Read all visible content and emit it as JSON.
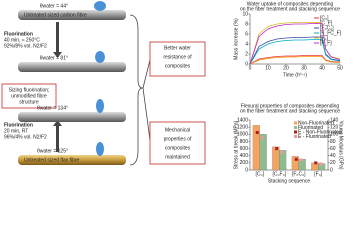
{
  "fibres": [
    {
      "label": "Untreated sized carbon fibre",
      "angle": "θwater = 44°"
    },
    {
      "angle": "θwater = 81°"
    },
    {
      "angle": "θwater = 134°"
    },
    {
      "label": "Untreated sized flax fibre",
      "angle": "θwater = 125°"
    }
  ],
  "treatments": [
    {
      "title": "Fluorination",
      "lines": [
        "40 min, ≈ 250°C",
        "92%/8% vol. N2/F2"
      ]
    },
    {
      "title": "Fluorination",
      "lines": [
        "20 min, RT",
        "96%/4% vol. N2/F2"
      ]
    }
  ],
  "center_box": [
    "Sizing fluorination;",
    "unmodified fibre",
    "structure"
  ],
  "outcomes": [
    [
      "Better water",
      "resistance of",
      "composites"
    ],
    [
      "Mechanical",
      "properties of",
      "composites",
      "maintained"
    ]
  ],
  "chart_data": [
    {
      "type": "line",
      "title": [
        "Water uptake of composites depending",
        "on the fiber treatment and stacking sequence"
      ],
      "x_label": "Time (h⁰·⁵)",
      "y_label": "Mass increase (%)",
      "x": [
        0,
        5,
        10,
        15,
        20,
        25,
        30,
        35,
        40,
        42,
        45,
        50
      ],
      "series": [
        {
          "name": "[C₀]",
          "color": "#e53935",
          "values": [
            0,
            1,
            1.3,
            1.5,
            1.6,
            1.6,
            1.7,
            1.7,
            1.7,
            0.8,
            0.5,
            0.4
          ]
        },
        {
          "name": "[C_F]",
          "color": "#fb8c00",
          "values": [
            0,
            0.8,
            1.1,
            1.3,
            1.4,
            1.4,
            1.5,
            1.5,
            1.5,
            0.7,
            0.4,
            0.3
          ]
        },
        {
          "name": "[F₀C₀]",
          "color": "#3949ab",
          "values": [
            0,
            3.5,
            4.5,
            5,
            5.2,
            5.3,
            5.3,
            5.4,
            5.4,
            2,
            1,
            0.7
          ]
        },
        {
          "name": "[F_FC_F]",
          "color": "#00acc1",
          "values": [
            0,
            3,
            4,
            4.5,
            4.7,
            4.8,
            4.8,
            4.9,
            4.9,
            1.8,
            0.9,
            0.6
          ]
        },
        {
          "name": "[F₀]",
          "color": "#d4c21a",
          "values": [
            0,
            6,
            7.5,
            8,
            8.2,
            8.3,
            8.3,
            8.3,
            8.3,
            3,
            1.5,
            1
          ]
        },
        {
          "name": "[F_F]",
          "color": "#c026d3",
          "values": [
            0,
            5.5,
            7,
            7.6,
            7.9,
            8,
            8,
            8.1,
            8.1,
            3,
            1.4,
            0.9
          ]
        }
      ],
      "xlim": [
        0,
        50
      ],
      "xticks": [
        0,
        10,
        20,
        30,
        40,
        50
      ],
      "ylim": [
        0,
        10
      ],
      "yticks": [
        0,
        2,
        4,
        6,
        8,
        10
      ]
    },
    {
      "type": "bar",
      "title": [
        "Flexural properties of composites depending",
        "on the fiber treatment and stacking sequence"
      ],
      "x_label": "Stacking sequence",
      "y_label": "Stress at break (MPa)",
      "y2_label": "Young Modulus (GPa)",
      "categories": [
        "[C₀]",
        "[C₀F₀]",
        "[F₀C₀]",
        "[F₀]"
      ],
      "series": [
        {
          "name": "Non-Fluorinated",
          "color": "#f4a460",
          "values": [
            1250,
            650,
            380,
            200
          ]
        },
        {
          "name": "Fluorinated",
          "color": "#8fbc8f",
          "values": [
            1000,
            550,
            300,
            180
          ]
        },
        {
          "name": "E - Non-Fluorinated",
          "color": "#b71c1c",
          "type": "scatter",
          "axis": "y2",
          "values": [
            105,
            60,
            30,
            20
          ]
        },
        {
          "name": "E - Fluorinated",
          "color": "#ef9a9a",
          "type": "scatter",
          "axis": "y2",
          "values": [
            90,
            50,
            28,
            17
          ]
        }
      ],
      "ylim": [
        0,
        1400
      ],
      "yticks": [
        0,
        200,
        400,
        600,
        800,
        1000,
        1200,
        1400
      ],
      "y2lim": [
        0,
        140
      ],
      "y2ticks": [
        0,
        20,
        40,
        60,
        80,
        100,
        120,
        140
      ]
    }
  ]
}
